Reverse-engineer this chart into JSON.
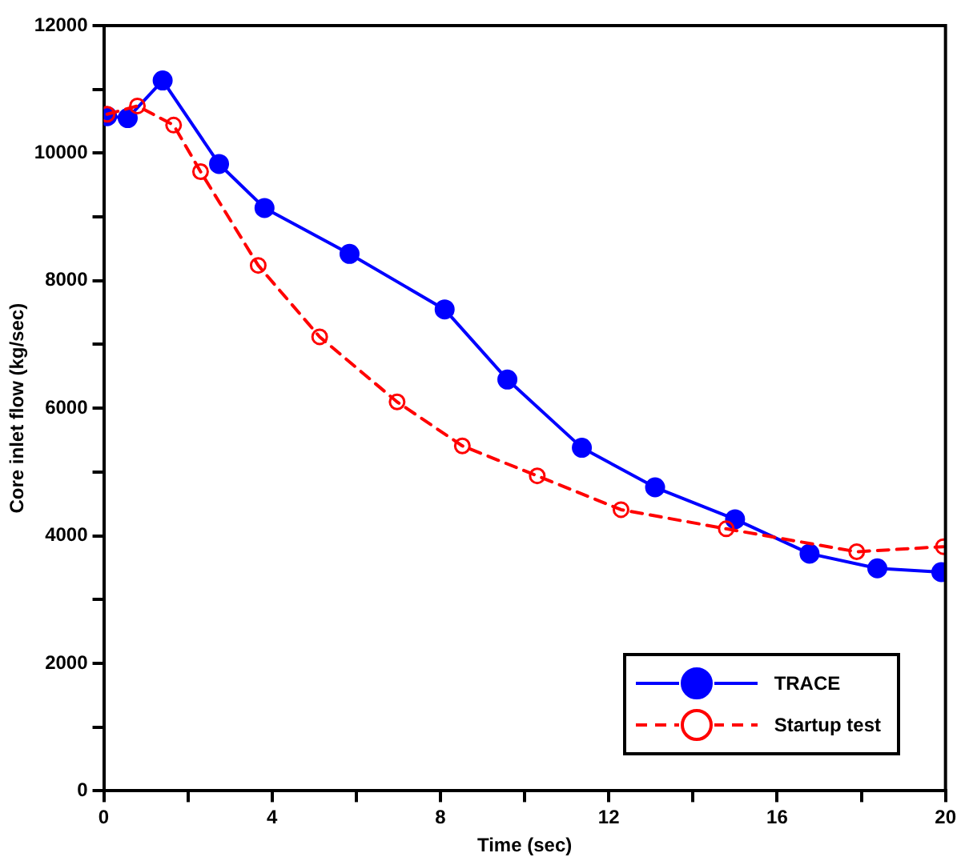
{
  "chart_data": {
    "type": "line",
    "xlabel": "Time (sec)",
    "ylabel": "Core inlet flow (kg/sec)",
    "xlim": [
      0,
      20
    ],
    "xticks": [
      0,
      {
        "value": 2,
        "label": null
      },
      4,
      {
        "value": 6,
        "label": null
      },
      8,
      {
        "value": 10,
        "label": null
      },
      12,
      {
        "value": 14,
        "label": null
      },
      16,
      {
        "value": 18,
        "label": null
      },
      20
    ],
    "ylim": [
      0,
      12000
    ],
    "yticks": [
      0,
      {
        "value": 1000,
        "label": null
      },
      2000,
      {
        "value": 3000,
        "label": null
      },
      4000,
      {
        "value": 5000,
        "label": null
      },
      6000,
      {
        "value": 7000,
        "label": null
      },
      8000,
      {
        "value": 9000,
        "label": null
      },
      10000,
      {
        "value": 11000,
        "label": null
      },
      12000
    ],
    "grid": false,
    "legend": "bottom right",
    "marker": "circle",
    "series": [
      {
        "name": "TRACE",
        "color": "#0000ff",
        "line_style": "solid",
        "x": [
          0.08,
          0.57,
          1.4,
          2.74,
          3.82,
          5.84,
          8.1,
          9.59,
          11.36,
          13.1,
          15.0,
          16.77,
          18.38,
          19.9
        ],
        "values": [
          10580,
          10550,
          11140,
          9830,
          9140,
          8420,
          7550,
          6450,
          5380,
          4760,
          4260,
          3720,
          3490,
          3430
        ]
      },
      {
        "name": "Startup test",
        "color": "#ff0000",
        "line_style": "dashed",
        "x": [
          0.08,
          0.8,
          1.66,
          2.3,
          3.67,
          5.13,
          6.97,
          8.52,
          10.3,
          12.29,
          14.79,
          17.89,
          19.95
        ],
        "values": [
          10610,
          10740,
          10440,
          9710,
          8240,
          7120,
          6100,
          5410,
          4940,
          4410,
          4110,
          3750,
          3830
        ]
      }
    ]
  }
}
